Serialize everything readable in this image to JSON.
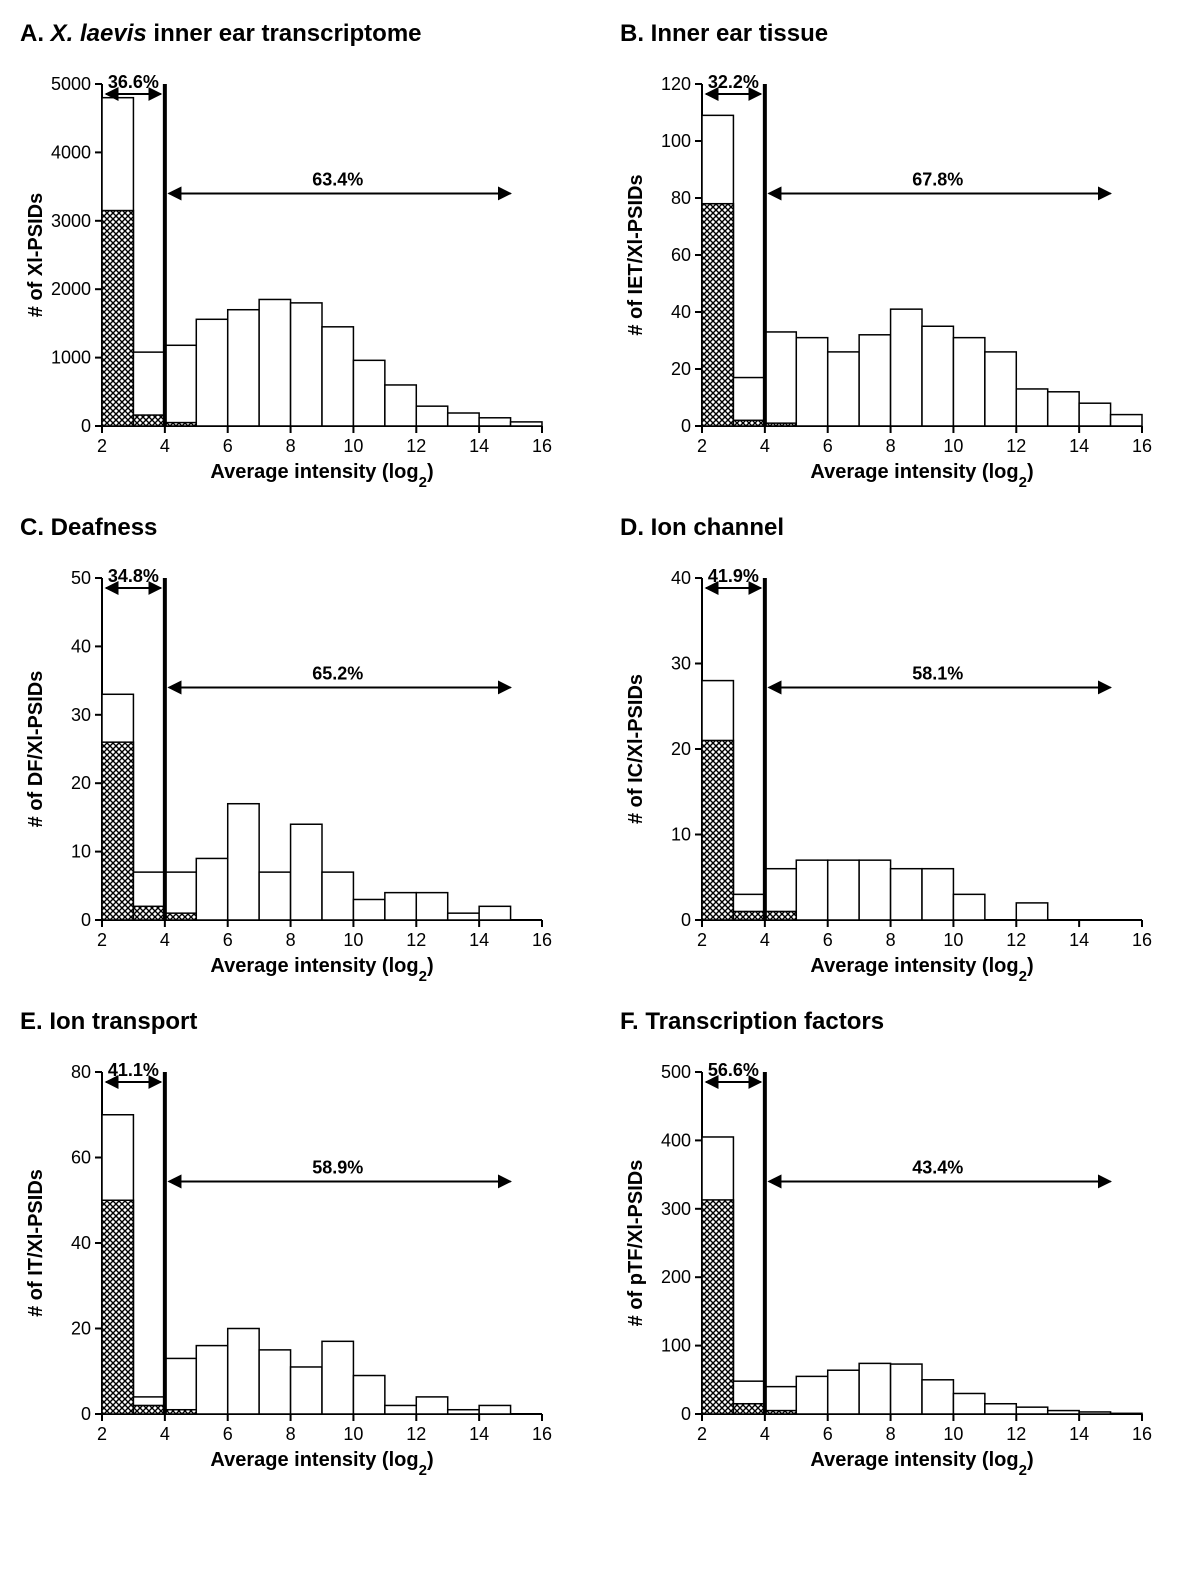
{
  "global": {
    "bg": "#ffffff",
    "fg": "#000000",
    "bar_stroke": "#000000",
    "bar_fill_open": "#ffffff",
    "hatch_fg": "#000000",
    "hatch_bg": "#ffffff",
    "xlabel": "Average intensity (log",
    "xlabel_sub": "2",
    "xlabel_close": ")",
    "x_ticks": [
      2,
      4,
      6,
      8,
      10,
      12,
      14,
      16
    ],
    "x_min": 2,
    "x_max": 16,
    "title_fontsize": 24,
    "axis_label_fontsize": 20,
    "tick_fontsize": 18,
    "vline_x": 4,
    "bar_gap": 0
  },
  "panels": [
    {
      "key": "A",
      "title_prefix": "A. ",
      "title_italic": "X. laevis",
      "title_rest": " inner ear transcriptome",
      "ylabel": "# of Xl-PSIDs",
      "ylim": [
        0,
        5000
      ],
      "ytick_step": 1000,
      "open_bars": [
        4800,
        1080,
        1180,
        1560,
        1700,
        1850,
        1800,
        1450,
        960,
        600,
        290,
        190,
        120,
        60
      ],
      "hatch_bars": [
        3150,
        160,
        50,
        0,
        0,
        0,
        0,
        0,
        0,
        0,
        0,
        0,
        0,
        0
      ],
      "pct_left": "36.6%",
      "pct_right": "63.4%"
    },
    {
      "key": "B",
      "title_prefix": "B. Inner ear tissue",
      "title_italic": "",
      "title_rest": "",
      "ylabel": "# of IET/Xl-PSIDs",
      "ylim": [
        0,
        120
      ],
      "ytick_step": 20,
      "open_bars": [
        109,
        17,
        33,
        31,
        26,
        32,
        41,
        35,
        31,
        26,
        13,
        12,
        8,
        4
      ],
      "hatch_bars": [
        78,
        2,
        1,
        0,
        0,
        0,
        0,
        0,
        0,
        0,
        0,
        0,
        0,
        0
      ],
      "pct_left": "32.2%",
      "pct_right": "67.8%"
    },
    {
      "key": "C",
      "title_prefix": "C. Deafness",
      "title_italic": "",
      "title_rest": "",
      "ylabel": "# of DF/Xl-PSIDs",
      "ylim": [
        0,
        50
      ],
      "ytick_step": 10,
      "open_bars": [
        33,
        7,
        7,
        9,
        17,
        7,
        14,
        7,
        3,
        4,
        4,
        1,
        2,
        0
      ],
      "hatch_bars": [
        26,
        2,
        1,
        0,
        0,
        0,
        0,
        0,
        0,
        0,
        0,
        0,
        0,
        0
      ],
      "pct_left": "34.8%",
      "pct_right": "65.2%"
    },
    {
      "key": "D",
      "title_prefix": "D. Ion channel",
      "title_italic": "",
      "title_rest": "",
      "ylabel": "# of IC/Xl-PSIDs",
      "ylim": [
        0,
        40
      ],
      "ytick_step": 10,
      "open_bars": [
        28,
        3,
        6,
        7,
        7,
        7,
        6,
        6,
        3,
        0,
        2,
        0,
        0,
        0
      ],
      "hatch_bars": [
        21,
        1,
        1,
        0,
        0,
        0,
        0,
        0,
        0,
        0,
        0,
        0,
        0,
        0
      ],
      "pct_left": "41.9%",
      "pct_right": "58.1%"
    },
    {
      "key": "E",
      "title_prefix": "E. Ion transport",
      "title_italic": "",
      "title_rest": "",
      "ylabel": "# of IT/Xl-PSIDs",
      "ylim": [
        0,
        80
      ],
      "ytick_step": 20,
      "open_bars": [
        70,
        4,
        13,
        16,
        20,
        15,
        11,
        17,
        9,
        2,
        4,
        1,
        2,
        0
      ],
      "hatch_bars": [
        50,
        2,
        1,
        0,
        0,
        0,
        0,
        0,
        0,
        0,
        0,
        0,
        0,
        0
      ],
      "pct_left": "41.1%",
      "pct_right": "58.9%"
    },
    {
      "key": "F",
      "title_prefix": "F. Transcription factors",
      "title_italic": "",
      "title_rest": "",
      "ylabel": "# of pTF/Xl-PSIDs",
      "ylim": [
        0,
        500
      ],
      "ytick_step": 100,
      "open_bars": [
        405,
        48,
        40,
        55,
        64,
        74,
        73,
        50,
        30,
        15,
        10,
        5,
        3,
        1
      ],
      "hatch_bars": [
        313,
        15,
        5,
        0,
        0,
        0,
        0,
        0,
        0,
        0,
        0,
        0,
        0,
        0
      ],
      "pct_left": "56.6%",
      "pct_right": "43.4%"
    }
  ]
}
